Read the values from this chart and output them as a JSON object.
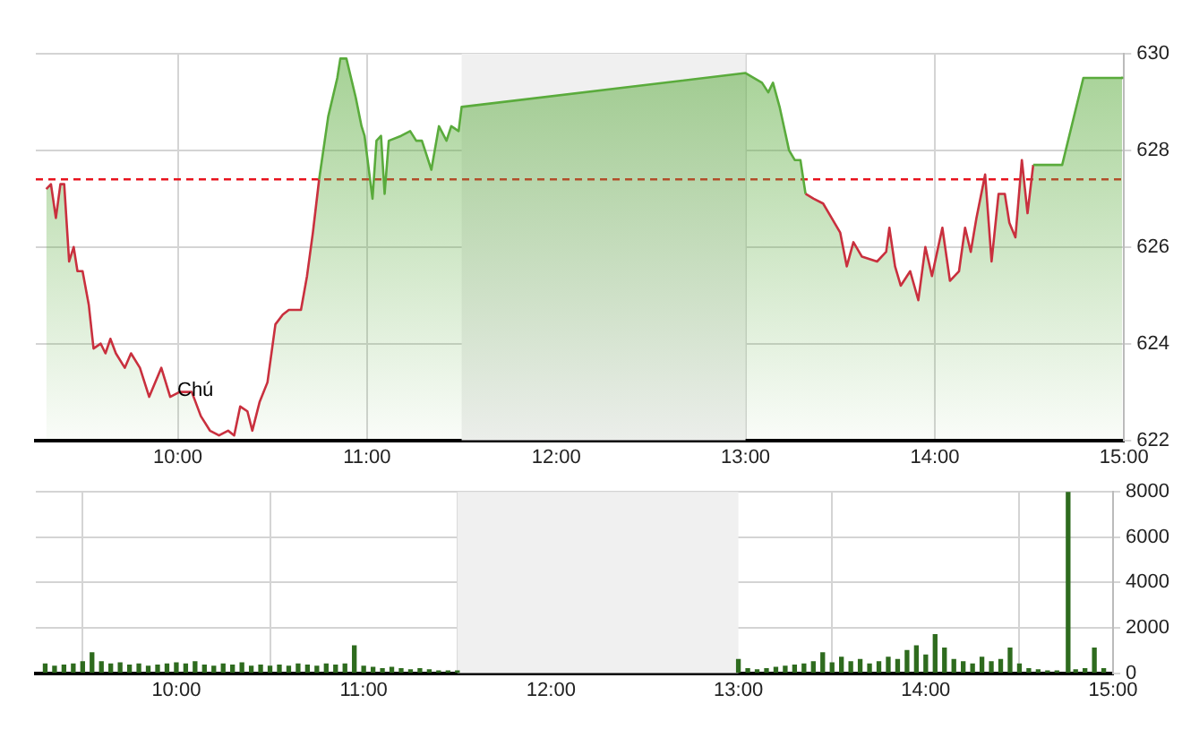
{
  "chart_data": [
    {
      "type": "area",
      "xlim": [
        9.25,
        15
      ],
      "ylim": [
        622,
        630
      ],
      "xticks": [
        {
          "value": 10,
          "label": "10:00"
        },
        {
          "value": 11,
          "label": "11:00"
        },
        {
          "value": 12,
          "label": "12:00"
        },
        {
          "value": 13,
          "label": "13:00"
        },
        {
          "value": 14,
          "label": "14:00"
        },
        {
          "value": 15,
          "label": "15:00"
        }
      ],
      "yticks": [
        622,
        624,
        626,
        628,
        630
      ],
      "grid": true,
      "legend": false,
      "annotations": [
        "Chú"
      ],
      "ref_lines": [
        {
          "axis": "y",
          "value": 627.4,
          "color": "#e8141e",
          "line_style": "dashed"
        }
      ],
      "bands": [
        {
          "axis": "x",
          "from": 11.5,
          "to": 13,
          "color": "#f0f0f0"
        }
      ],
      "series": [
        {
          "color": "#5aab3c",
          "x": [
            9.305,
            9.33,
            9.356,
            9.38,
            9.4,
            9.426,
            9.45,
            9.47,
            9.497,
            9.53,
            9.555,
            9.593,
            9.618,
            9.644,
            9.673,
            9.72,
            9.753,
            9.8,
            9.849,
            9.913,
            9.96,
            10.01,
            10.074,
            10.122,
            10.17,
            10.218,
            10.266,
            10.298,
            10.33,
            10.368,
            10.394,
            10.433,
            10.474,
            10.516,
            10.555,
            10.587,
            10.651,
            10.683,
            10.714,
            10.747,
            10.795,
            10.843,
            10.859,
            10.891,
            10.94,
            10.971,
            10.987,
            11.029,
            11.05,
            11.074,
            11.093,
            11.115,
            11.18,
            11.228,
            11.26,
            11.29,
            11.34,
            11.38,
            11.42,
            11.445,
            11.484,
            11.5,
            13.0,
            13.087,
            13.12,
            13.145,
            13.18,
            13.23,
            13.26,
            13.29,
            13.317,
            13.36,
            13.41,
            13.455,
            13.5,
            13.535,
            13.57,
            13.615,
            13.695,
            13.743,
            13.76,
            13.79,
            13.82,
            13.87,
            13.913,
            13.95,
            13.985,
            14.04,
            14.08,
            14.128,
            14.16,
            14.19,
            14.22,
            14.266,
            14.3,
            14.337,
            14.37,
            14.394,
            14.426,
            14.46,
            14.49,
            14.52,
            14.673,
            14.785,
            14.99
          ],
          "values": [
            627.2,
            627.3,
            626.6,
            627.3,
            627.3,
            625.7,
            626.0,
            625.5,
            625.5,
            624.8,
            623.9,
            624.0,
            623.8,
            624.1,
            623.8,
            623.5,
            623.8,
            623.5,
            622.9,
            623.5,
            622.9,
            623.0,
            623.0,
            622.5,
            622.2,
            622.1,
            622.2,
            622.1,
            622.7,
            622.6,
            622.2,
            622.8,
            623.2,
            624.4,
            624.6,
            624.7,
            624.7,
            625.4,
            626.3,
            627.4,
            628.7,
            629.5,
            629.9,
            629.9,
            629.1,
            628.5,
            628.3,
            627.0,
            628.2,
            628.3,
            627.1,
            628.2,
            628.3,
            628.4,
            628.2,
            628.2,
            627.6,
            628.5,
            628.2,
            628.5,
            628.4,
            628.9,
            629.6,
            629.4,
            629.2,
            629.4,
            628.9,
            628.0,
            627.8,
            627.8,
            627.1,
            627.0,
            626.9,
            626.6,
            626.3,
            625.6,
            626.1,
            625.8,
            625.7,
            625.9,
            626.4,
            625.6,
            625.2,
            625.5,
            624.9,
            626.0,
            625.4,
            626.4,
            625.3,
            625.5,
            626.4,
            625.9,
            626.6,
            627.5,
            625.7,
            627.1,
            627.1,
            626.5,
            626.2,
            627.8,
            626.7,
            627.7,
            627.7,
            629.5,
            629.5
          ],
          "colors": [
            "#c9303e",
            "#c9303e",
            "#c9303e",
            "#c9303e",
            "#c9303e",
            "#c9303e",
            "#c9303e",
            "#c9303e",
            "#c9303e",
            "#c9303e",
            "#c9303e",
            "#c9303e",
            "#c9303e",
            "#c9303e",
            "#c9303e",
            "#c9303e",
            "#c9303e",
            "#c9303e",
            "#c9303e",
            "#c9303e",
            "#c9303e",
            "#c9303e",
            "#c9303e",
            "#c9303e",
            "#c9303e",
            "#c9303e",
            "#c9303e",
            "#c9303e",
            "#c9303e",
            "#c9303e",
            "#c9303e",
            "#c9303e",
            "#c9303e",
            "#c9303e",
            "#c9303e",
            "#c9303e",
            "#c9303e",
            "#c9303e",
            "#c9303e",
            "#5aab3c",
            "#5aab3c",
            "#5aab3c",
            "#5aab3c",
            "#5aab3c",
            "#5aab3c",
            "#5aab3c",
            "#5aab3c",
            "#5aab3c",
            "#5aab3c",
            "#5aab3c",
            "#5aab3c",
            "#5aab3c",
            "#5aab3c",
            "#5aab3c",
            "#5aab3c",
            "#5aab3c",
            "#5aab3c",
            "#5aab3c",
            "#5aab3c",
            "#5aab3c",
            "#5aab3c",
            "#5aab3c",
            "#5aab3c",
            "#5aab3c",
            "#5aab3c",
            "#5aab3c",
            "#5aab3c",
            "#5aab3c",
            "#5aab3c",
            "#5aab3c",
            "#c9303e",
            "#c9303e",
            "#c9303e",
            "#c9303e",
            "#c9303e",
            "#c9303e",
            "#c9303e",
            "#c9303e",
            "#c9303e",
            "#c9303e",
            "#c9303e",
            "#c9303e",
            "#c9303e",
            "#c9303e",
            "#c9303e",
            "#c9303e",
            "#c9303e",
            "#c9303e",
            "#c9303e",
            "#c9303e",
            "#c9303e",
            "#c9303e",
            "#c9303e",
            "#c9303e",
            "#c9303e",
            "#c9303e",
            "#c9303e",
            "#c9303e",
            "#c9303e",
            "#c9303e",
            "#c9303e",
            "#5aab3c",
            "#5aab3c",
            "#5aab3c",
            "#5aab3c"
          ]
        }
      ]
    },
    {
      "type": "bar",
      "xlim": [
        9.25,
        15
      ],
      "ylim": [
        0,
        8000
      ],
      "xticks": [
        {
          "value": 10,
          "label": "10:00"
        },
        {
          "value": 11,
          "label": "11:00"
        },
        {
          "value": 12,
          "label": "12:00"
        },
        {
          "value": 13,
          "label": "13:00"
        },
        {
          "value": 14,
          "label": "14:00"
        },
        {
          "value": 15,
          "label": "15:00"
        }
      ],
      "yticks": [
        0,
        2000,
        4000,
        6000,
        8000
      ],
      "grid": true,
      "legend": false,
      "bands": [
        {
          "axis": "x",
          "from": 11.5,
          "to": 13,
          "color": "#f0f0f0"
        }
      ],
      "series": [
        {
          "color": "#2e6b1e",
          "x": [
            9.3,
            9.35,
            9.4,
            9.45,
            9.5,
            9.55,
            9.6,
            9.65,
            9.7,
            9.75,
            9.8,
            9.85,
            9.9,
            9.95,
            10.0,
            10.05,
            10.1,
            10.15,
            10.2,
            10.25,
            10.3,
            10.35,
            10.4,
            10.45,
            10.5,
            10.55,
            10.6,
            10.65,
            10.7,
            10.75,
            10.8,
            10.85,
            10.9,
            10.95,
            11.0,
            11.05,
            11.1,
            11.15,
            11.2,
            11.25,
            11.3,
            11.35,
            11.4,
            11.45,
            11.5,
            13.0,
            13.05,
            13.1,
            13.15,
            13.2,
            13.25,
            13.3,
            13.35,
            13.4,
            13.45,
            13.5,
            13.55,
            13.6,
            13.65,
            13.7,
            13.75,
            13.8,
            13.85,
            13.9,
            13.95,
            14.0,
            14.05,
            14.1,
            14.15,
            14.2,
            14.25,
            14.3,
            14.35,
            14.4,
            14.45,
            14.5,
            14.55,
            14.6,
            14.65,
            14.7,
            14.76,
            14.8,
            14.85,
            14.9,
            14.95
          ],
          "values": [
            400,
            300,
            350,
            400,
            500,
            900,
            500,
            400,
            450,
            350,
            400,
            300,
            350,
            400,
            450,
            400,
            500,
            350,
            300,
            400,
            350,
            450,
            300,
            350,
            300,
            350,
            300,
            400,
            350,
            300,
            400,
            350,
            400,
            1200,
            300,
            250,
            200,
            250,
            200,
            150,
            200,
            150,
            100,
            100,
            100,
            600,
            200,
            150,
            200,
            250,
            300,
            350,
            400,
            500,
            900,
            450,
            700,
            500,
            600,
            400,
            500,
            700,
            600,
            1000,
            1200,
            800,
            1700,
            1100,
            600,
            500,
            400,
            700,
            500,
            600,
            1100,
            400,
            200,
            150,
            100,
            100,
            8000,
            150,
            200,
            1100,
            200
          ]
        }
      ]
    }
  ]
}
